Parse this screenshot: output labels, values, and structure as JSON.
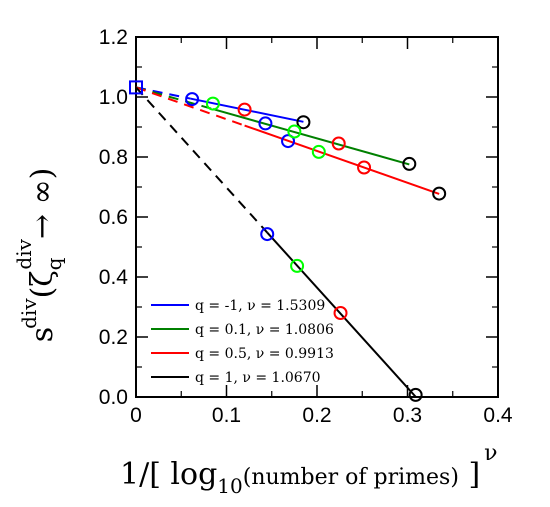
{
  "chart_data": {
    "type": "scatter",
    "title": "",
    "xlabel": {
      "prefix": "1/[ log",
      "sub": "10",
      "middle": "(number of primes) ]",
      "sup": "ν"
    },
    "ylabel": {
      "s": "s",
      "s_sup": "div",
      "open": "(ζ",
      "zeta_sub": "q",
      "zeta_sup": "div",
      "arrow": "→ ∞)"
    },
    "xlim": [
      0,
      0.4
    ],
    "ylim": [
      0,
      1.2
    ],
    "xticks": [
      "0",
      "0.1",
      "0.2",
      "0.3",
      "0.4"
    ],
    "yticks": [
      "0.0",
      "0.2",
      "0.4",
      "0.6",
      "0.8",
      "1.0",
      "1.2"
    ],
    "xtick_values": [
      0,
      0.1,
      0.2,
      0.3,
      0.4
    ],
    "ytick_values": [
      0,
      0.2,
      0.4,
      0.6,
      0.8,
      1.0,
      1.2
    ],
    "grid": false,
    "legend_position": "bottom-left",
    "extrapolated_point": {
      "x": 0,
      "y": 1.032,
      "marker": "square"
    },
    "series": [
      {
        "name": "q = -1,   ν = 1.5309",
        "color": "#0000ff",
        "fit": {
          "intercept": 1.032,
          "slope": -0.62,
          "x_solid_from": 0.06,
          "x_solid_to": 0.185
        },
        "points": [
          {
            "x": 0.062,
            "y": 0.993,
            "color": "#0000ff"
          },
          {
            "x": 0.143,
            "y": 0.912,
            "color": "#0000ff"
          },
          {
            "x": 0.168,
            "y": 0.853,
            "color": "#0000ff"
          },
          {
            "x": 0.185,
            "y": 0.916,
            "color": "#000000"
          }
        ]
      },
      {
        "name": "q = 0.1, ν = 1.0806",
        "color": "#008000",
        "fit": {
          "intercept": 1.032,
          "slope": -0.85,
          "x_solid_from": 0.085,
          "x_solid_to": 0.302
        },
        "points": [
          {
            "x": 0.085,
            "y": 0.978,
            "color": "#00ff00"
          },
          {
            "x": 0.175,
            "y": 0.885,
            "color": "#00ff00"
          },
          {
            "x": 0.202,
            "y": 0.817,
            "color": "#00ff00"
          },
          {
            "x": 0.302,
            "y": 0.777,
            "color": "#000000"
          }
        ]
      },
      {
        "name": "q = 0.5, ν = 0.9913",
        "color": "#ff0000",
        "fit": {
          "intercept": 1.032,
          "slope": -1.06,
          "x_solid_from": 0.12,
          "x_solid_to": 0.335
        },
        "points": [
          {
            "x": 0.12,
            "y": 0.958,
            "color": "#ff0000"
          },
          {
            "x": 0.224,
            "y": 0.845,
            "color": "#ff0000"
          },
          {
            "x": 0.252,
            "y": 0.765,
            "color": "#ff0000"
          },
          {
            "x": 0.335,
            "y": 0.678,
            "color": "#000000"
          }
        ]
      },
      {
        "name": "q = 1,   ν = 1.0670",
        "color": "#000000",
        "fit": {
          "intercept": 1.032,
          "slope": -3.337,
          "x_solid_from": 0.145,
          "x_solid_to": 0.309
        },
        "points": [
          {
            "x": 0.145,
            "y": 0.543,
            "color": "#0000ff"
          },
          {
            "x": 0.178,
            "y": 0.437,
            "color": "#00ff00"
          },
          {
            "x": 0.226,
            "y": 0.28,
            "color": "#ff0000"
          },
          {
            "x": 0.309,
            "y": 0.007,
            "color": "#000000"
          }
        ]
      }
    ]
  }
}
